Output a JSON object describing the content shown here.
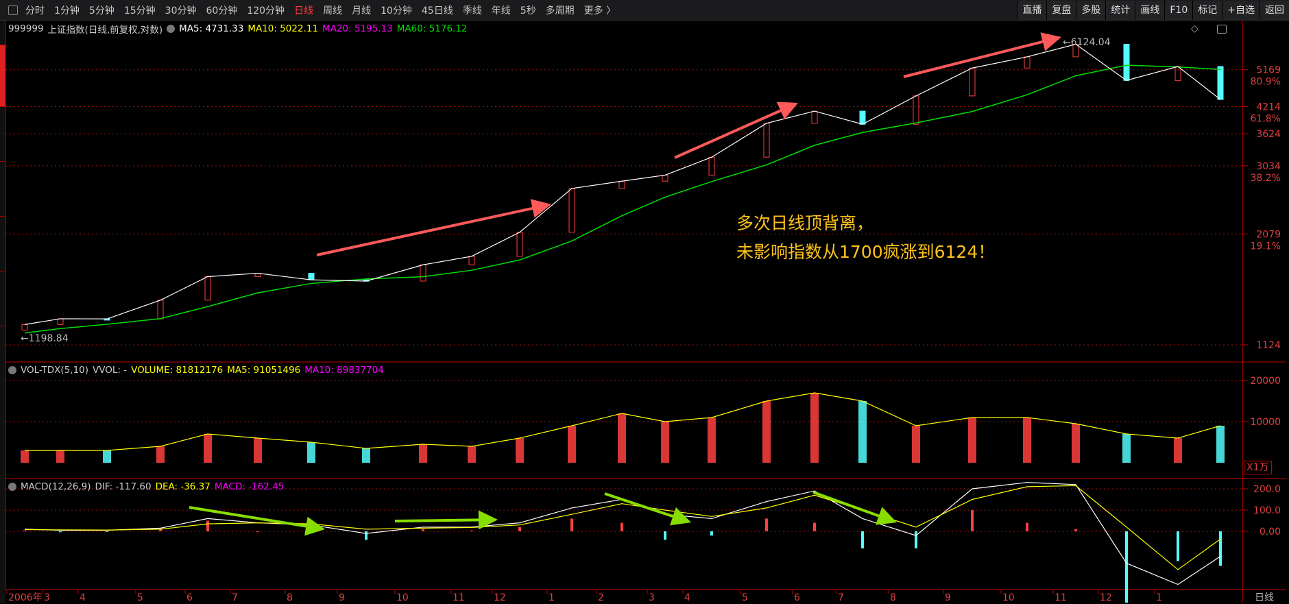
{
  "toolbar": {
    "periods": [
      "分时",
      "1分钟",
      "5分钟",
      "15分钟",
      "30分钟",
      "60分钟",
      "120分钟",
      "日线",
      "周线",
      "月线",
      "10分钟",
      "45日线",
      "季线",
      "年线",
      "5秒",
      "多周期",
      "更多 〉"
    ],
    "active": "日线",
    "right_buttons": [
      "直播",
      "复盘",
      "多股",
      "统计",
      "画线",
      "F10",
      "标记",
      "+自选",
      "返回"
    ]
  },
  "main": {
    "code": "999999",
    "name": "上证指数(日线,前复权,对数)",
    "ma5": "MA5: 4731.33",
    "ma10": "MA10: 5022.11",
    "ma20": "MA20: 5195.13",
    "ma60": "MA60: 5176.12",
    "low_label": "←1198.84",
    "high_label": "←6124.04",
    "annotation": [
      "多次日线顶背离，",
      "未影响指数从1700疯涨到6124！"
    ]
  },
  "volume": {
    "title": "VOL-TDX(5,10)",
    "vvol": "VVOL: -",
    "volume": "VOLUME: 81812176",
    "ma5": "MA5: 91051496",
    "ma10": "MA10: 89837704",
    "unit": "X1万"
  },
  "macd": {
    "title": "MACD(12,26,9)",
    "dif": "DIF: -117.60",
    "dea": "DEA: -36.37",
    "macd": "MACD: -162.45"
  },
  "period_label": "日线",
  "colors": {
    "up": "#ff4040",
    "down": "#54fcfc",
    "ma5": "#ffffff",
    "ma10": "#ffff00",
    "ma20": "#ff00ff",
    "ma60": "#00e000",
    "axis": "#c00000",
    "arrow_red": "#ff5a5a",
    "arrow_green": "#88dd00",
    "annotation": "#ffc21a"
  },
  "chart_data": [
    {
      "type": "line",
      "scale": "log",
      "ylim": [
        1124,
        6124.04
      ],
      "price_ticks": [
        {
          "v": 5169,
          "pct": "80.9%"
        },
        {
          "v": 4214,
          "pct": "61.8%"
        },
        {
          "v": 3624,
          "pct": ""
        },
        {
          "v": 3034,
          "pct": "38.2%"
        },
        {
          "v": 2079,
          "pct": "19.1%"
        },
        {
          "v": 1124,
          "pct": ""
        }
      ],
      "x": [
        "2006-01",
        "2006-02",
        "2006-03",
        "2006-04",
        "2006-05",
        "2006-06",
        "2006-07",
        "2006-08",
        "2006-09",
        "2006-10",
        "2006-11",
        "2006-12",
        "2007-01",
        "2007-02",
        "2007-03",
        "2007-04",
        "2007-05",
        "2007-06",
        "2007-07",
        "2007-08",
        "2007-09",
        "2007-10",
        "2007-11",
        "2007-12",
        "2008-01"
      ],
      "series": [
        {
          "key": "close",
          "values": [
            1258,
            1299,
            1298,
            1440,
            1641,
            1672,
            1612,
            1601,
            1752,
            1837,
            2099,
            2675,
            2786,
            2881,
            3183,
            3841,
            4109,
            3820,
            4471,
            5218,
            5552,
            5955,
            4871,
            5262,
            4383
          ]
        },
        {
          "key": "ma60",
          "values": [
            1200,
            1230,
            1260,
            1300,
            1390,
            1500,
            1580,
            1620,
            1640,
            1700,
            1800,
            2000,
            2300,
            2550,
            2780,
            3050,
            3400,
            3650,
            3850,
            4100,
            4500,
            5000,
            5300,
            5250,
            5176
          ]
        }
      ]
    },
    {
      "type": "bar",
      "ylabel": "X1万",
      "yticks": [
        10000,
        20000
      ],
      "x": [
        "2006-01",
        "2006-02",
        "2006-03",
        "2006-04",
        "2006-05",
        "2006-06",
        "2006-07",
        "2006-08",
        "2006-09",
        "2006-10",
        "2006-11",
        "2006-12",
        "2007-01",
        "2007-02",
        "2007-03",
        "2007-04",
        "2007-05",
        "2007-06",
        "2007-07",
        "2007-08",
        "2007-09",
        "2007-10",
        "2007-11",
        "2007-12",
        "2008-01"
      ],
      "values": [
        3000,
        3000,
        3000,
        4000,
        7000,
        6000,
        5000,
        3500,
        4500,
        4000,
        6000,
        9000,
        12000,
        10000,
        11000,
        15000,
        17000,
        15000,
        9000,
        11000,
        11000,
        9500,
        7000,
        6000,
        9000
      ]
    },
    {
      "type": "line",
      "yticks": [
        200,
        100,
        0
      ],
      "x": [
        "2006-01",
        "2006-02",
        "2006-03",
        "2006-04",
        "2006-05",
        "2006-06",
        "2006-07",
        "2006-08",
        "2006-09",
        "2006-10",
        "2006-11",
        "2006-12",
        "2007-01",
        "2007-02",
        "2007-03",
        "2007-04",
        "2007-05",
        "2007-06",
        "2007-07",
        "2007-08",
        "2007-09",
        "2007-10",
        "2007-11",
        "2007-12",
        "2008-01"
      ],
      "series": [
        {
          "key": "dif",
          "values": [
            10,
            5,
            5,
            15,
            60,
            40,
            30,
            -10,
            20,
            20,
            40,
            110,
            150,
            80,
            60,
            140,
            190,
            60,
            -20,
            200,
            230,
            220,
            -150,
            -250,
            -117.6
          ]
        },
        {
          "key": "dea",
          "values": [
            8,
            7,
            6,
            10,
            35,
            40,
            35,
            10,
            15,
            18,
            30,
            80,
            130,
            100,
            70,
            110,
            170,
            100,
            20,
            150,
            210,
            215,
            20,
            -180,
            -36.37
          ]
        }
      ]
    },
    {
      "type": "axis",
      "labels": [
        "2006年",
        "3",
        "4",
        "5",
        "6",
        "7",
        "8",
        "9",
        "10",
        "11",
        "12",
        "1",
        "2",
        "3",
        "4",
        "5",
        "6",
        "7",
        "8",
        "9",
        "10",
        "11",
        "12",
        "1"
      ]
    }
  ]
}
